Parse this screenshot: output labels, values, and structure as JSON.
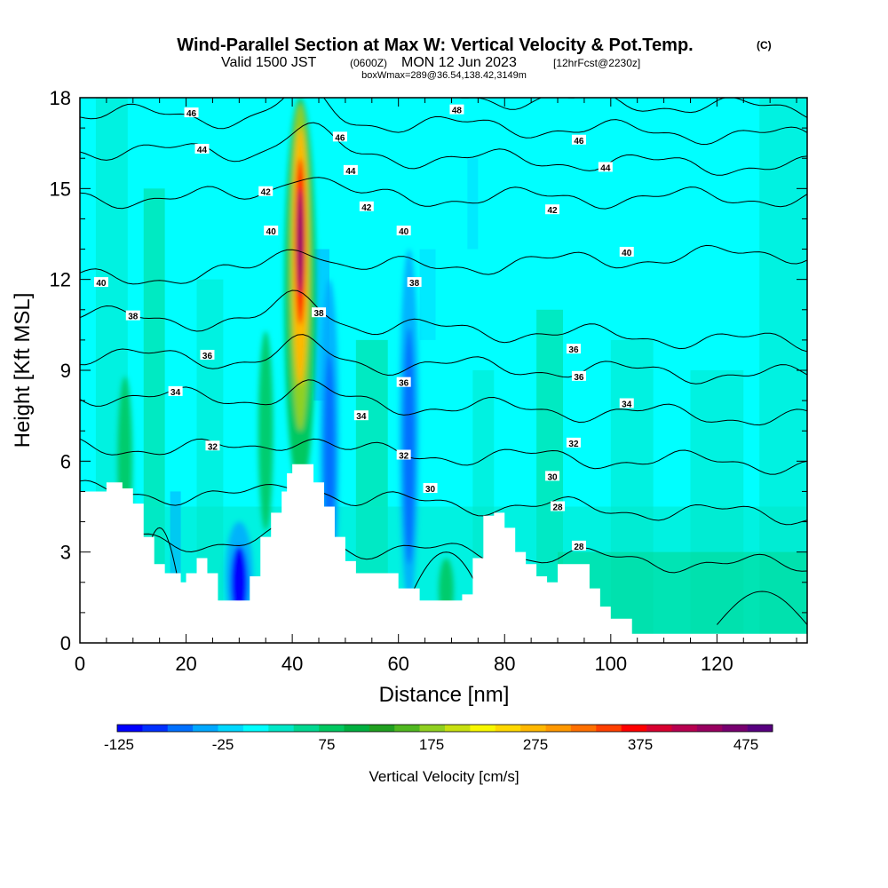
{
  "title": {
    "main": "Wind-Parallel Section at Max W: Vertical Velocity & Pot.Temp.",
    "copyright": "(C)",
    "valid_prefix": "Valid 1500 JST",
    "valid_utc": "(0600Z)",
    "valid_date": "MON 12 Jun 2023",
    "forecast": "[12hrFcst@2230z]",
    "box": "boxWmax=289@36.54,138.42,3149m"
  },
  "chart_data": {
    "type": "heatmap",
    "xlabel": "Distance [nm]",
    "ylabel": "Height [Kft MSL]",
    "xlim": [
      0,
      137
    ],
    "ylim": [
      0,
      18
    ],
    "x_ticks": [
      0,
      20,
      40,
      60,
      80,
      100,
      120
    ],
    "y_ticks": [
      0,
      3,
      6,
      9,
      12,
      15,
      18
    ],
    "grid": false,
    "background_field": "Vertical Velocity",
    "background_units": "cm/s",
    "background_dominant_value": -25,
    "updrafts": [
      {
        "x": 41.5,
        "ztop": 17.8,
        "peak": 475
      },
      {
        "x": 35,
        "ztop": 10,
        "peak": 75
      },
      {
        "x": 8.5,
        "ztop": 8.5,
        "peak": 75
      },
      {
        "x": 69,
        "ztop": 2.5,
        "peak": 75
      }
    ],
    "downdrafts": [
      {
        "x": 30,
        "ztop": 4,
        "peak": -125
      },
      {
        "x": 47,
        "ztop": 12,
        "peak": -75
      },
      {
        "x": 62,
        "ztop": 13,
        "peak": -75
      }
    ],
    "terrain": {
      "units": "Kft MSL",
      "x": [
        0,
        4,
        5,
        8,
        10,
        12,
        14,
        16,
        18,
        19,
        20,
        22,
        24,
        26,
        28,
        30,
        32,
        34,
        36,
        38,
        39,
        40,
        42,
        44,
        46,
        48,
        50,
        52,
        54,
        56,
        60,
        64,
        66,
        68,
        70,
        72,
        74,
        76,
        78,
        80,
        82,
        84,
        86,
        88,
        90,
        92,
        96,
        98,
        100,
        104,
        108,
        112,
        137
      ],
      "z": [
        5.0,
        5.0,
        5.3,
        5.1,
        4.6,
        3.5,
        2.6,
        2.3,
        2.3,
        2.0,
        2.3,
        2.8,
        2.3,
        1.4,
        1.4,
        1.4,
        2.2,
        3.5,
        4.3,
        5.0,
        5.6,
        5.9,
        5.9,
        5.3,
        4.5,
        3.5,
        2.7,
        2.3,
        2.3,
        2.3,
        1.8,
        1.4,
        1.4,
        1.4,
        1.4,
        1.6,
        2.8,
        4.2,
        4.3,
        3.8,
        3.0,
        2.6,
        2.2,
        2.0,
        2.6,
        2.6,
        1.8,
        1.2,
        0.8,
        0.3,
        0.3,
        0.3,
        0.3
      ]
    },
    "contour_field": "Potential Temperature",
    "contour_levels": [
      {
        "level": 28,
        "h_left": 3.5,
        "h_right": 2.5
      },
      {
        "level": 30,
        "h_left": 5.0,
        "h_right": 4.2
      },
      {
        "level": 32,
        "h_left": 6.5,
        "h_right": 5.9
      },
      {
        "level": 34,
        "h_left": 8.2,
        "h_right": 7.4
      },
      {
        "level": 36,
        "h_left": 9.5,
        "h_right": 8.8
      },
      {
        "level": 38,
        "h_left": 10.8,
        "h_right": 9.9
      },
      {
        "level": 40,
        "h_left": 12.0,
        "h_right": 12.9
      },
      {
        "level": 42,
        "h_left": 14.7,
        "h_right": 14.7
      },
      {
        "level": 44,
        "h_left": 16.3,
        "h_right": 15.7
      },
      {
        "level": 46,
        "h_left": 17.5,
        "h_right": 16.7
      },
      {
        "level": 48,
        "h_left": 18.5,
        "h_right": 17.6
      }
    ],
    "contour_labels": [
      {
        "text": "46",
        "x": 21,
        "y": 17.5
      },
      {
        "text": "48",
        "x": 71,
        "y": 17.6
      },
      {
        "text": "46",
        "x": 49,
        "y": 16.7
      },
      {
        "text": "46",
        "x": 94,
        "y": 16.6
      },
      {
        "text": "44",
        "x": 23,
        "y": 16.3
      },
      {
        "text": "44",
        "x": 51,
        "y": 15.6
      },
      {
        "text": "44",
        "x": 99,
        "y": 15.7
      },
      {
        "text": "42",
        "x": 35,
        "y": 14.9
      },
      {
        "text": "42",
        "x": 54,
        "y": 14.4
      },
      {
        "text": "42",
        "x": 89,
        "y": 14.3
      },
      {
        "text": "40",
        "x": 36,
        "y": 13.6
      },
      {
        "text": "40",
        "x": 61,
        "y": 13.6
      },
      {
        "text": "40",
        "x": 103,
        "y": 12.9
      },
      {
        "text": "40",
        "x": 4,
        "y": 11.9
      },
      {
        "text": "38",
        "x": 63,
        "y": 11.9
      },
      {
        "text": "38",
        "x": 10,
        "y": 10.8
      },
      {
        "text": "38",
        "x": 45,
        "y": 10.9
      },
      {
        "text": "36",
        "x": 93,
        "y": 9.7
      },
      {
        "text": "36",
        "x": 24,
        "y": 9.5
      },
      {
        "text": "36",
        "x": 94,
        "y": 8.8
      },
      {
        "text": "36",
        "x": 61,
        "y": 8.6
      },
      {
        "text": "34",
        "x": 18,
        "y": 8.3
      },
      {
        "text": "34",
        "x": 103,
        "y": 7.9
      },
      {
        "text": "34",
        "x": 53,
        "y": 7.5
      },
      {
        "text": "32",
        "x": 25,
        "y": 6.5
      },
      {
        "text": "32",
        "x": 93,
        "y": 6.6
      },
      {
        "text": "32",
        "x": 61,
        "y": 6.2
      },
      {
        "text": "30",
        "x": 89,
        "y": 5.5
      },
      {
        "text": "30",
        "x": 66,
        "y": 5.1
      },
      {
        "text": "28",
        "x": 90,
        "y": 4.5
      },
      {
        "text": "28",
        "x": 94,
        "y": 3.2
      }
    ],
    "colorbar": {
      "title": "Vertical Velocity [cm/s]",
      "tick_labels": [
        "-125",
        "-25",
        "75",
        "175",
        "275",
        "375",
        "475"
      ],
      "colors": [
        "#0000ff",
        "#0030ff",
        "#0070ff",
        "#00a8ff",
        "#00d8ff",
        "#00ffff",
        "#00e8c8",
        "#00d890",
        "#00c860",
        "#00b040",
        "#20a020",
        "#50b820",
        "#90d020",
        "#c8e010",
        "#f8f800",
        "#ffd800",
        "#ffb800",
        "#ff9800",
        "#ff7000",
        "#ff4000",
        "#ff0000",
        "#d80030",
        "#b80050",
        "#980060",
        "#780070",
        "#580080"
      ]
    }
  }
}
